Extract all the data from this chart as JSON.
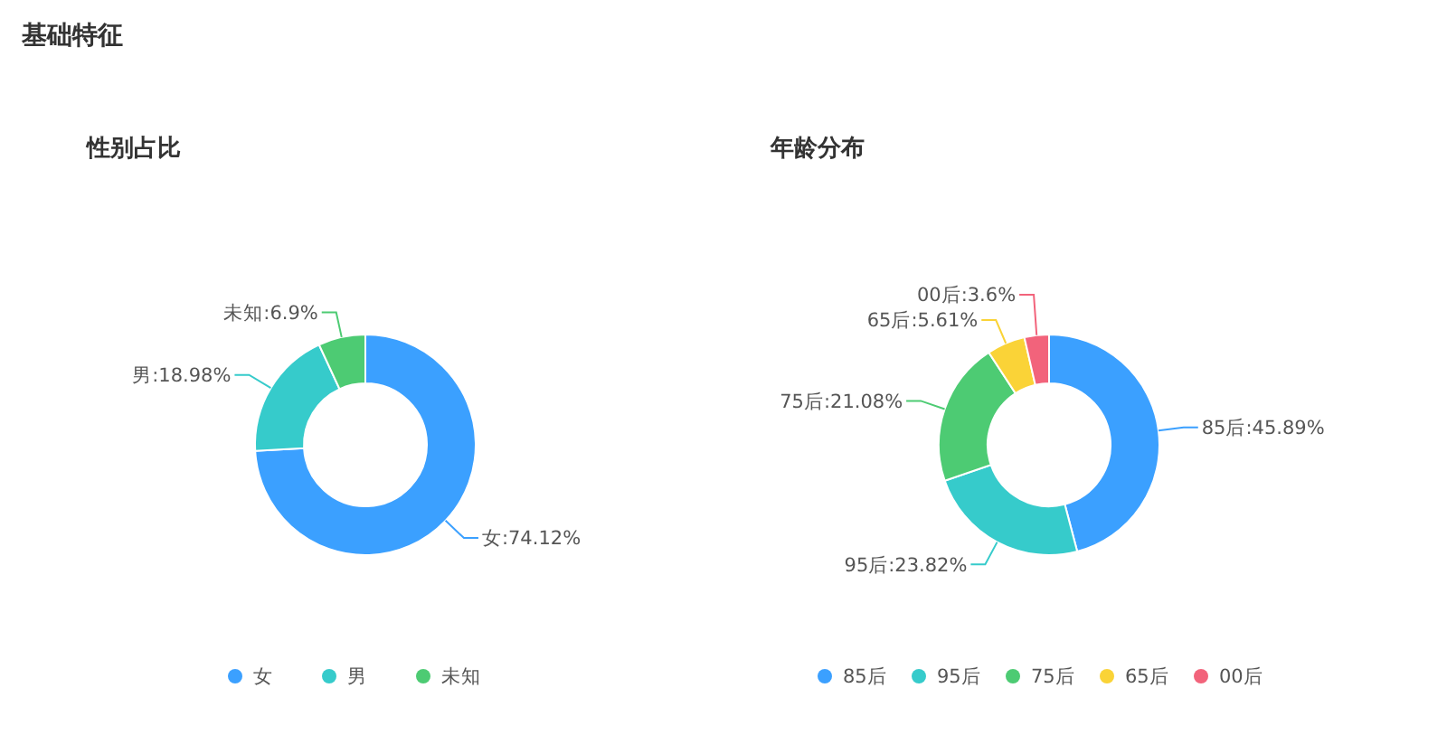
{
  "chart_data": [
    {
      "type": "other",
      "title": "基础特征"
    },
    {
      "type": "donut",
      "title": "性别占比",
      "categories": [
        "女",
        "男",
        "未知"
      ],
      "values": [
        74.12,
        18.98,
        6.9
      ],
      "colors": [
        "#3ba0ff",
        "#36cbcb",
        "#4dcb73"
      ],
      "value_labels": [
        "女:74.12%",
        "男:18.98%",
        "未知:6.9%"
      ],
      "legend": "bottom"
    },
    {
      "type": "donut",
      "title": "年龄分布",
      "categories": [
        "85后",
        "95后",
        "75后",
        "65后",
        "00后"
      ],
      "values": [
        45.89,
        23.82,
        21.08,
        5.61,
        3.6
      ],
      "colors": [
        "#3ba0ff",
        "#36cbcb",
        "#4dcb73",
        "#fad337",
        "#f2637b"
      ],
      "value_labels": [
        "85后:45.89%",
        "95后:23.82%",
        "75后:21.08%",
        "65后:5.61%",
        "00后:3.6%"
      ],
      "legend": "bottom"
    }
  ]
}
